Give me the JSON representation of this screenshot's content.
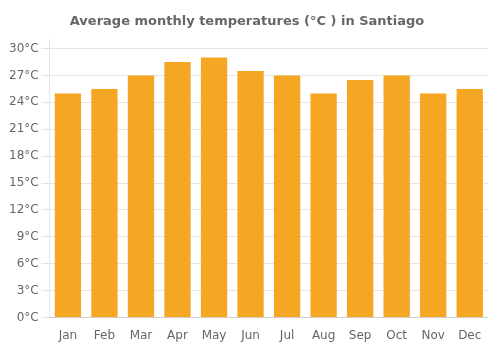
{
  "chart_data": {
    "type": "bar",
    "title": "Average monthly temperatures (°C ) in Santiago",
    "categories": [
      "Jan",
      "Feb",
      "Mar",
      "Apr",
      "May",
      "Jun",
      "Jul",
      "Aug",
      "Sep",
      "Oct",
      "Nov",
      "Dec"
    ],
    "values": [
      25.0,
      25.5,
      27.0,
      28.5,
      29.0,
      27.5,
      27.0,
      25.0,
      26.5,
      27.0,
      25.0,
      25.5
    ],
    "color": "#F5A623",
    "ylim": [
      0,
      31
    ],
    "yticks": [
      {
        "value": 0,
        "label": "0°C"
      },
      {
        "value": 3,
        "label": "3°C"
      },
      {
        "value": 6,
        "label": "6°C"
      },
      {
        "value": 9,
        "label": "9°C"
      },
      {
        "value": 12,
        "label": "12°C"
      },
      {
        "value": 15,
        "label": "15°C"
      },
      {
        "value": 18,
        "label": "18°C"
      },
      {
        "value": 21,
        "label": "21°C"
      },
      {
        "value": 24,
        "label": "24°C"
      },
      {
        "value": 27,
        "label": "27°C"
      },
      {
        "value": 30,
        "label": "30°C"
      }
    ],
    "grid": true
  }
}
